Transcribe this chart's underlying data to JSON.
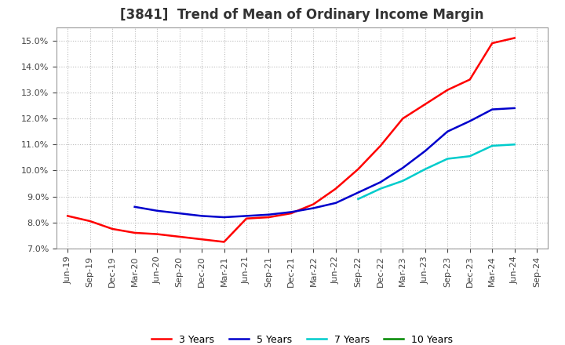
{
  "title": "[3841]  Trend of Mean of Ordinary Income Margin",
  "ylim": [
    0.07,
    0.155
  ],
  "yticks": [
    0.07,
    0.08,
    0.09,
    0.1,
    0.11,
    0.12,
    0.13,
    0.14,
    0.15
  ],
  "background_color": "#ffffff",
  "plot_bg_color": "#ffffff",
  "grid_color": "#bbbbbb",
  "x_labels": [
    "Jun-19",
    "Sep-19",
    "Dec-19",
    "Mar-20",
    "Jun-20",
    "Sep-20",
    "Dec-20",
    "Mar-21",
    "Jun-21",
    "Sep-21",
    "Dec-21",
    "Mar-22",
    "Jun-22",
    "Sep-22",
    "Dec-22",
    "Mar-23",
    "Jun-23",
    "Sep-23",
    "Dec-23",
    "Mar-24",
    "Jun-24",
    "Sep-24"
  ],
  "series": [
    {
      "label": "3 Years",
      "color": "#ff0000",
      "data_x": [
        0,
        1,
        2,
        3,
        4,
        5,
        6,
        7,
        8,
        9,
        10,
        11,
        12,
        13,
        14,
        15,
        16,
        17,
        18,
        19,
        20
      ],
      "data_y": [
        0.0825,
        0.0805,
        0.0775,
        0.076,
        0.0755,
        0.0745,
        0.0735,
        0.0725,
        0.0815,
        0.082,
        0.0835,
        0.087,
        0.093,
        0.1005,
        0.1095,
        0.12,
        0.1255,
        0.131,
        0.135,
        0.149,
        0.151
      ]
    },
    {
      "label": "5 Years",
      "color": "#0000cc",
      "data_x": [
        3,
        4,
        5,
        6,
        7,
        8,
        9,
        10,
        11,
        12,
        13,
        14,
        15,
        16,
        17,
        18,
        19,
        20
      ],
      "data_y": [
        0.086,
        0.0845,
        0.0835,
        0.0825,
        0.082,
        0.0825,
        0.083,
        0.084,
        0.0855,
        0.0875,
        0.0915,
        0.0955,
        0.101,
        0.1075,
        0.115,
        0.119,
        0.1235,
        0.124
      ]
    },
    {
      "label": "7 Years",
      "color": "#00cccc",
      "data_x": [
        13,
        14,
        15,
        16,
        17,
        18,
        19,
        20
      ],
      "data_y": [
        0.089,
        0.093,
        0.096,
        0.1005,
        0.1045,
        0.1055,
        0.1095,
        0.11
      ]
    },
    {
      "label": "10 Years",
      "color": "#008800",
      "data_x": [],
      "data_y": []
    }
  ],
  "title_fontsize": 12,
  "tick_fontsize": 8,
  "legend_fontsize": 9,
  "linewidth": 1.8
}
